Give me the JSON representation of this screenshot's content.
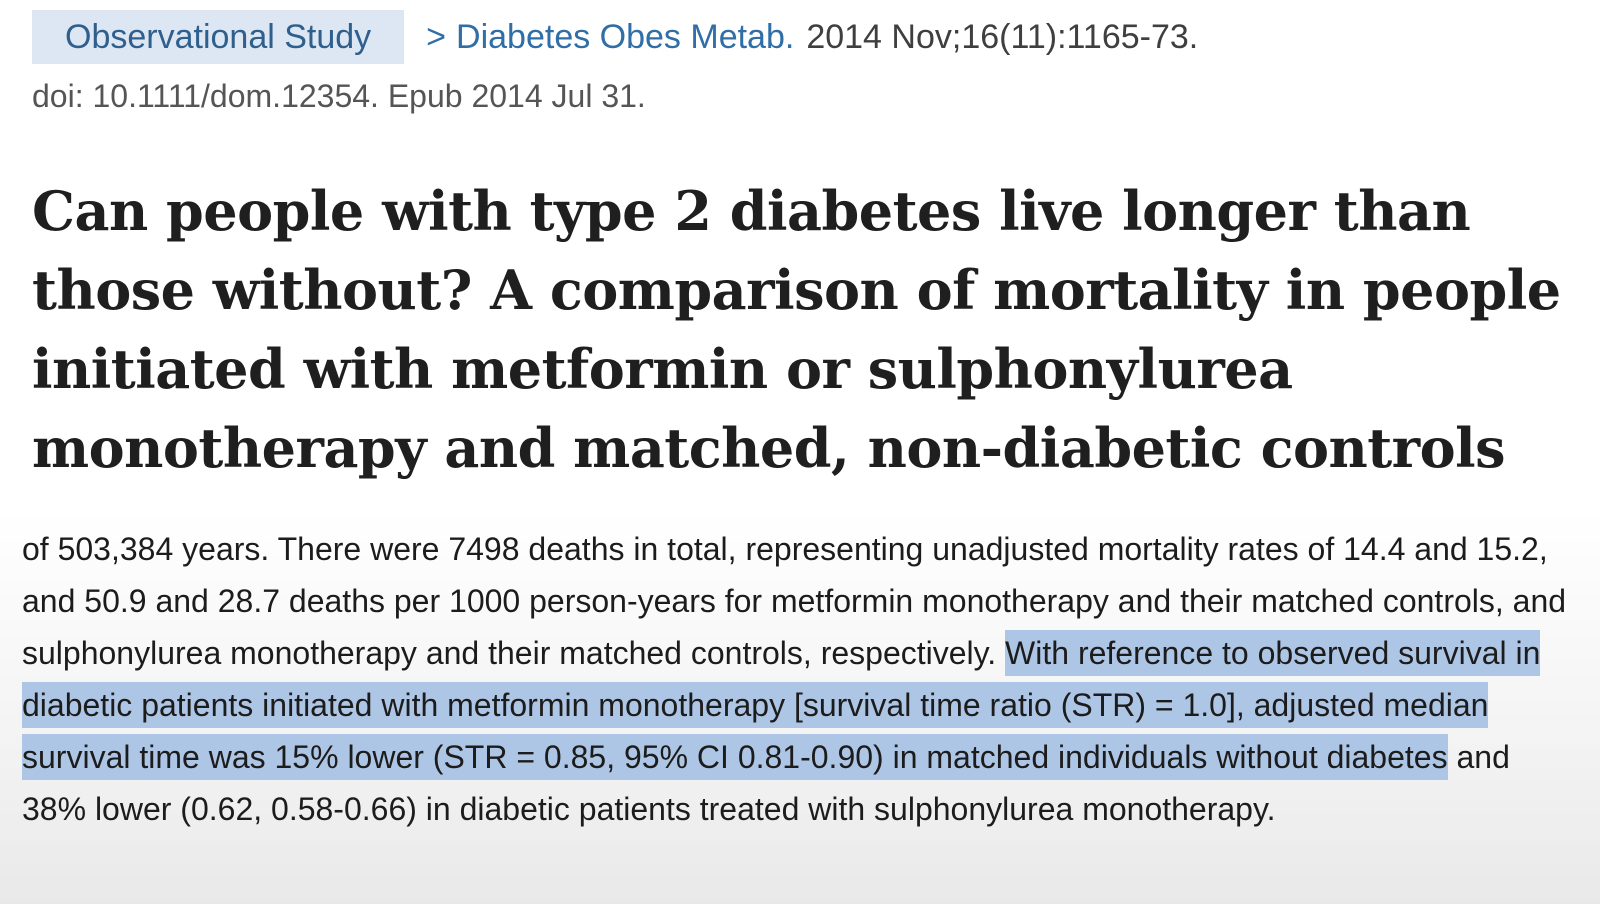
{
  "header": {
    "badge": "Observational Study",
    "chevron": ">",
    "journal": "Diabetes Obes Metab.",
    "citation": "2014 Nov;16(11):1165-73.",
    "doi": "doi: 10.1111/dom.12354. Epub 2014 Jul 31."
  },
  "article": {
    "title": "Can people with type 2 diabetes live longer than those without? A comparison of mortality in people initiated with metformin or sulphonylurea monotherapy and matched, non-diabetic controls"
  },
  "abstract": {
    "text_before": "of 503,384 years. There were 7498 deaths in total, representing unadjusted mortality rates of 14.4 and 15.2, and 50.9 and 28.7 deaths per 1000 person-years for metformin monotherapy and their matched controls, and sulphonylurea monotherapy and their matched controls, respectively. ",
    "highlighted": "With reference to observed survival in diabetic patients initiated with metformin monotherapy [survival time ratio (STR) = 1.0], adjusted median survival time was 15% lower (STR = 0.85, 95% CI 0.81-0.90) in matched individuals without diabetes",
    "text_after": " and 38% lower (0.62, 0.58-0.66) in diabetic patients treated with sulphonylurea monotherapy."
  },
  "colors": {
    "highlight": "#aec6e6",
    "badge_bg": "#dde6f3",
    "link": "#2f6ea6"
  }
}
